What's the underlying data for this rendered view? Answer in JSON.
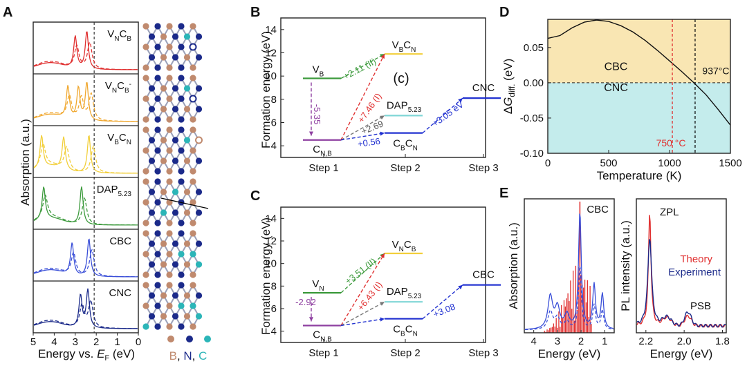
{
  "panels": {
    "A": {
      "label": "A",
      "ylabel": "Absorption (a.u.)",
      "xlabel": "Energy vs. E_F (eV)",
      "xlabel_parts": [
        "Energy vs. ",
        "E",
        "F",
        " (eV)"
      ],
      "xticks": [
        "5",
        "4",
        "3",
        "2",
        "1",
        "0"
      ],
      "fermi_line_x": 2.1,
      "legend": {
        "atoms": [
          "B",
          "N",
          "C"
        ],
        "separator": ", ",
        "colors": {
          "B": "#c08a6e",
          "N": "#1b2a8a",
          "C": "#2bb5b8"
        }
      },
      "rows": [
        {
          "name": "VNCB",
          "parts": [
            "V",
            "N",
            "C",
            "B"
          ],
          "color": "#e03030",
          "peaks": [
            3.0,
            2.45
          ]
        },
        {
          "name": "VNCB-",
          "parts": [
            "V",
            "N",
            "C",
            "B",
            "-"
          ],
          "color": "#f0a830",
          "peaks": [
            3.35,
            2.85,
            2.45
          ]
        },
        {
          "name": "VBCN",
          "parts": [
            "V",
            "B",
            "C",
            "N"
          ],
          "color": "#f2cf3a",
          "peaks": [
            4.6,
            3.55,
            2.35
          ]
        },
        {
          "name": "DAP5.23",
          "parts": [
            "DAP",
            "5.23"
          ],
          "color": "#3c9a3c",
          "peaks": [
            4.5,
            2.7
          ]
        },
        {
          "name": "CBC",
          "parts": [
            "CBC"
          ],
          "color": "#3a4fd8",
          "peaks": [
            3.15,
            2.35
          ]
        },
        {
          "name": "CNC",
          "parts": [
            "CNC"
          ],
          "color": "#1b2a8a",
          "peaks": [
            2.75,
            2.4
          ]
        }
      ]
    },
    "B": {
      "label": "B",
      "ylabel": "Formation energy (eV)",
      "yticks": [
        "4",
        "6",
        "8",
        "10",
        "12",
        "14"
      ],
      "xticks": [
        "Step 1",
        "Step 2",
        "Step 3"
      ],
      "annotation": "(c)",
      "levels": [
        {
          "name": "VB",
          "parts": [
            "V",
            "B"
          ],
          "step": 1,
          "energy": 9.8,
          "color": "#3c9a3c"
        },
        {
          "name": "CN,B",
          "parts": [
            "C",
            "N,B"
          ],
          "step": 1,
          "energy": 4.5,
          "color": "#8e3fa0"
        },
        {
          "name": "VBCN",
          "parts": [
            "V",
            "B",
            "C",
            "N"
          ],
          "step": 2,
          "energy": 11.9,
          "color": "#f2cf3a"
        },
        {
          "name": "DAP5.23",
          "parts": [
            "DAP",
            "5.23"
          ],
          "step": 2,
          "energy": 6.6,
          "color": "#7fd6d6"
        },
        {
          "name": "CBCN",
          "parts": [
            "C",
            "B",
            "C",
            "N"
          ],
          "step": 2,
          "energy": 5.1,
          "color": "#2030d0"
        },
        {
          "name": "CNC",
          "parts": [
            "CNC"
          ],
          "step": 3,
          "energy": 8.1,
          "color": "#2030d0"
        }
      ],
      "transitions": [
        {
          "text": "+2.11 (II)",
          "color": "#3c9a3c"
        },
        {
          "text": "+7.46 (I)",
          "color": "#e03030"
        },
        {
          "text": "-5.35",
          "color": "#8e3fa0"
        },
        {
          "text": "+2.69",
          "color": "#555555"
        },
        {
          "text": "+0.56",
          "color": "#2030d0"
        },
        {
          "text": "+3.05 eV",
          "color": "#2030d0"
        }
      ]
    },
    "C": {
      "label": "C",
      "ylabel": "Formation energy (eV)",
      "yticks": [
        "4",
        "6",
        "8",
        "10",
        "12",
        "14"
      ],
      "xticks": [
        "Step 1",
        "Step 2",
        "Step 3"
      ],
      "levels": [
        {
          "name": "VN",
          "parts": [
            "V",
            "N"
          ],
          "step": 1,
          "energy": 7.4,
          "color": "#3c9a3c"
        },
        {
          "name": "CN,B",
          "parts": [
            "C",
            "N,B"
          ],
          "step": 1,
          "energy": 4.5,
          "color": "#8e3fa0"
        },
        {
          "name": "VNCB",
          "parts": [
            "V",
            "N",
            "C",
            "B"
          ],
          "step": 2,
          "energy": 10.9,
          "color": "#f2cf3a"
        },
        {
          "name": "DAP5.23",
          "parts": [
            "DAP",
            "5.23"
          ],
          "step": 2,
          "energy": 6.6,
          "color": "#7fd6d6"
        },
        {
          "name": "CBCN",
          "parts": [
            "C",
            "B",
            "C",
            "N"
          ],
          "step": 2,
          "energy": 5.1,
          "color": "#2030d0"
        },
        {
          "name": "CBC",
          "parts": [
            "CBC"
          ],
          "step": 3,
          "energy": 8.1,
          "color": "#2030d0"
        }
      ],
      "transitions": [
        {
          "text": "-2.92",
          "color": "#8e3fa0"
        },
        {
          "text": "+3.51 (II)",
          "color": "#3c9a3c"
        },
        {
          "text": "+6.43 (I)",
          "color": "#e03030"
        },
        {
          "text": "+3.08",
          "color": "#2030d0"
        }
      ]
    },
    "D": {
      "label": "D",
      "ylabel_parts": [
        "ΔG",
        "diff.",
        " (eV)"
      ],
      "xlabel": "Temperature (K)",
      "xticks": [
        "0",
        "500",
        "1000",
        "1500"
      ],
      "yticks": [
        "0.05",
        "0.00",
        "-0.05",
        "-0.10"
      ],
      "region_top": "CBC",
      "region_bottom": "CNC",
      "red_line_label": "750 °C",
      "black_line_label": "937°C",
      "colors": {
        "top": "#f9e6b3",
        "bottom": "#c4ecec",
        "red": "#e03030"
      }
    },
    "E": {
      "label": "E",
      "left": {
        "ylabel": "Absorption (a.u.)",
        "xlabel": "Energy (eV)",
        "xticks": [
          "4",
          "3",
          "2",
          "1"
        ],
        "title": "CBC"
      },
      "right": {
        "ylabel": "PL intensity (a.u.)",
        "xlabel": "Energy (eV)",
        "xticks": [
          "2.2",
          "2.0",
          "1.8"
        ],
        "zpl": "ZPL",
        "psb": "PSB",
        "legend": [
          "Theory",
          "Experiment"
        ]
      }
    }
  },
  "chart_data": [
    {
      "type": "line",
      "title": "A",
      "xlabel": "Energy vs. E_F (eV)",
      "ylabel": "Absorption (a.u.)",
      "xlim": [
        5,
        0
      ],
      "series": [
        {
          "name": "VNCB",
          "peaks_eV": [
            3.0,
            2.45
          ]
        },
        {
          "name": "VNCB-",
          "peaks_eV": [
            3.35,
            2.85,
            2.45
          ]
        },
        {
          "name": "VBCN",
          "peaks_eV": [
            4.6,
            3.55,
            2.35
          ]
        },
        {
          "name": "DAP5.23",
          "peaks_eV": [
            4.5,
            2.7
          ]
        },
        {
          "name": "CBC",
          "peaks_eV": [
            3.15,
            2.35
          ]
        },
        {
          "name": "CNC",
          "peaks_eV": [
            2.75,
            2.4
          ]
        }
      ]
    },
    {
      "type": "line",
      "title": "B",
      "ylabel": "Formation energy (eV)",
      "ylim": [
        3,
        15
      ],
      "categories": [
        "Step 1",
        "Step 2",
        "Step 3"
      ],
      "series": [
        {
          "name": "VB",
          "step": 1,
          "value": 9.8
        },
        {
          "name": "CN,B",
          "step": 1,
          "value": 4.5
        },
        {
          "name": "VBCN",
          "step": 2,
          "value": 11.9
        },
        {
          "name": "DAP5.23",
          "step": 2,
          "value": 6.6
        },
        {
          "name": "CBCN",
          "step": 2,
          "value": 5.1
        },
        {
          "name": "CNC",
          "step": 3,
          "value": 8.1
        }
      ]
    },
    {
      "type": "line",
      "title": "C",
      "ylabel": "Formation energy (eV)",
      "ylim": [
        3,
        15
      ],
      "categories": [
        "Step 1",
        "Step 2",
        "Step 3"
      ],
      "series": [
        {
          "name": "VN",
          "step": 1,
          "value": 7.4
        },
        {
          "name": "CN,B",
          "step": 1,
          "value": 4.5
        },
        {
          "name": "VNCB",
          "step": 2,
          "value": 10.9
        },
        {
          "name": "DAP5.23",
          "step": 2,
          "value": 6.6
        },
        {
          "name": "CBCN",
          "step": 2,
          "value": 5.1
        },
        {
          "name": "CBC",
          "step": 3,
          "value": 8.1
        }
      ]
    },
    {
      "type": "line",
      "title": "D",
      "xlabel": "Temperature (K)",
      "ylabel": "ΔG_diff. (eV)",
      "xlim": [
        0,
        1500
      ],
      "ylim": [
        -0.1,
        0.09
      ],
      "x": [
        0,
        100,
        200,
        300,
        400,
        500,
        600,
        700,
        800,
        900,
        1000,
        1100,
        1200,
        1300,
        1400,
        1500
      ],
      "y": [
        0.063,
        0.067,
        0.078,
        0.086,
        0.089,
        0.087,
        0.081,
        0.072,
        0.06,
        0.046,
        0.031,
        0.016,
        0.0,
        -0.017,
        -0.038,
        -0.06
      ],
      "vlines": [
        {
          "x": 1023,
          "label": "750 °C"
        },
        {
          "x": 1210,
          "label": "937°C"
        }
      ]
    },
    {
      "type": "line",
      "title": "E-left",
      "xlabel": "Energy (eV)",
      "ylabel": "Absorption (a.u.)",
      "xlim": [
        4.4,
        0.6
      ],
      "peaks_eV": [
        3.3,
        2.05,
        1.45,
        1.1
      ]
    },
    {
      "type": "line",
      "title": "E-right",
      "xlabel": "Energy (eV)",
      "ylabel": "PL intensity (a.u.)",
      "xlim": [
        2.25,
        1.78
      ],
      "series": [
        {
          "name": "Theory"
        },
        {
          "name": "Experiment"
        }
      ],
      "peaks_eV": [
        {
          "label": "ZPL",
          "x": 2.18
        },
        {
          "label": "PSB",
          "x": 1.98
        }
      ]
    }
  ]
}
